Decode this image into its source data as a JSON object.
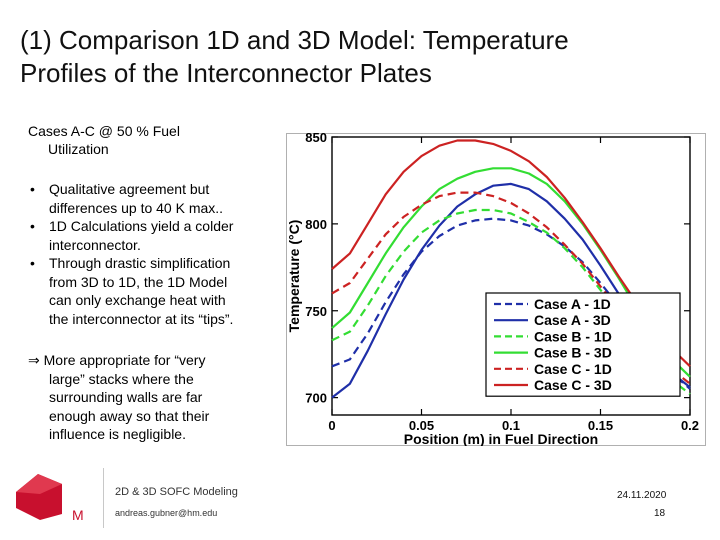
{
  "slide": {
    "title_line1": "(1) Comparison 1D and 3D Model: Temperature",
    "title_line2": "Profiles of the Interconnector Plates",
    "intro_line1": "Cases A-C @ 50 % Fuel",
    "intro_line2": "Utilization",
    "bullets": [
      {
        "lines": [
          "Qualitative agreement but",
          "differences up to 40 K max.."
        ]
      },
      {
        "lines": [
          "1D Calculations yield a colder",
          "interconnector."
        ]
      },
      {
        "lines": [
          "Through drastic simplification",
          "from 3D to 1D, the 1D Model",
          "can only exchange heat with",
          "the interconnector at its “tips”."
        ]
      }
    ],
    "bullet_symbol": "•",
    "conclusion_arrow": "⇒",
    "conclusion_lines": [
      "More appropriate for “very",
      "large” stacks where the",
      "surrounding walls are far",
      "enough away so that their",
      "influence is negligible."
    ]
  },
  "footer": {
    "logo_letter": "M",
    "course": "2D & 3D SOFC Modeling",
    "email": "andreas.gubner@hm.edu",
    "date": "24.11.2020",
    "page": "18"
  },
  "colors": {
    "case_a": "#1f2fa8",
    "case_b": "#33dd33",
    "case_c": "#cc2222",
    "logo": "#c8102e"
  },
  "chart_data": {
    "type": "line",
    "xlabel": "Position (m) in Fuel Direction",
    "ylabel": "Temperature (°C)",
    "xlim": [
      0,
      0.2
    ],
    "ylim": [
      690,
      850
    ],
    "xticks": [
      0,
      0.05,
      0.1,
      0.15,
      0.2
    ],
    "xtick_labels": [
      "0",
      "0.05",
      "0.1",
      "0.15",
      "0.2"
    ],
    "yticks": [
      700,
      750,
      800,
      850
    ],
    "ytick_labels": [
      "700",
      "750",
      "800",
      "850"
    ],
    "grid": false,
    "legend_position": "bottom-right",
    "x": [
      0,
      0.01,
      0.02,
      0.03,
      0.04,
      0.05,
      0.06,
      0.07,
      0.08,
      0.09,
      0.1,
      0.11,
      0.12,
      0.13,
      0.14,
      0.15,
      0.16,
      0.17,
      0.18,
      0.19,
      0.2
    ],
    "series": [
      {
        "name": "Case A - 1D",
        "color_key": "case_a",
        "dash": true,
        "values": [
          718,
          722,
          737,
          755,
          771,
          784,
          793,
          799,
          802,
          803,
          802,
          799,
          794,
          787,
          778,
          766,
          753,
          739,
          726,
          714,
          705
        ]
      },
      {
        "name": "Case A - 3D",
        "color_key": "case_a",
        "dash": false,
        "values": [
          700,
          708,
          727,
          748,
          768,
          785,
          799,
          810,
          817,
          822,
          823,
          820,
          813,
          803,
          791,
          776,
          760,
          743,
          727,
          714,
          706
        ]
      },
      {
        "name": "Case B - 1D",
        "color_key": "case_b",
        "dash": true,
        "values": [
          733,
          738,
          753,
          770,
          784,
          795,
          802,
          806,
          808,
          808,
          806,
          801,
          795,
          786,
          775,
          762,
          748,
          734,
          721,
          710,
          702
        ]
      },
      {
        "name": "Case B - 3D",
        "color_key": "case_b",
        "dash": false,
        "values": [
          740,
          749,
          766,
          783,
          798,
          810,
          820,
          826,
          830,
          832,
          832,
          829,
          823,
          813,
          800,
          785,
          769,
          752,
          736,
          722,
          712
        ]
      },
      {
        "name": "Case C - 1D",
        "color_key": "case_c",
        "dash": true,
        "values": [
          760,
          766,
          780,
          794,
          804,
          811,
          816,
          818,
          818,
          816,
          812,
          806,
          798,
          788,
          777,
          764,
          751,
          738,
          726,
          716,
          708
        ]
      },
      {
        "name": "Case C - 3D",
        "color_key": "case_c",
        "dash": false,
        "values": [
          774,
          783,
          800,
          817,
          830,
          839,
          845,
          848,
          848,
          846,
          842,
          836,
          827,
          815,
          801,
          786,
          770,
          755,
          741,
          728,
          718
        ]
      }
    ]
  }
}
